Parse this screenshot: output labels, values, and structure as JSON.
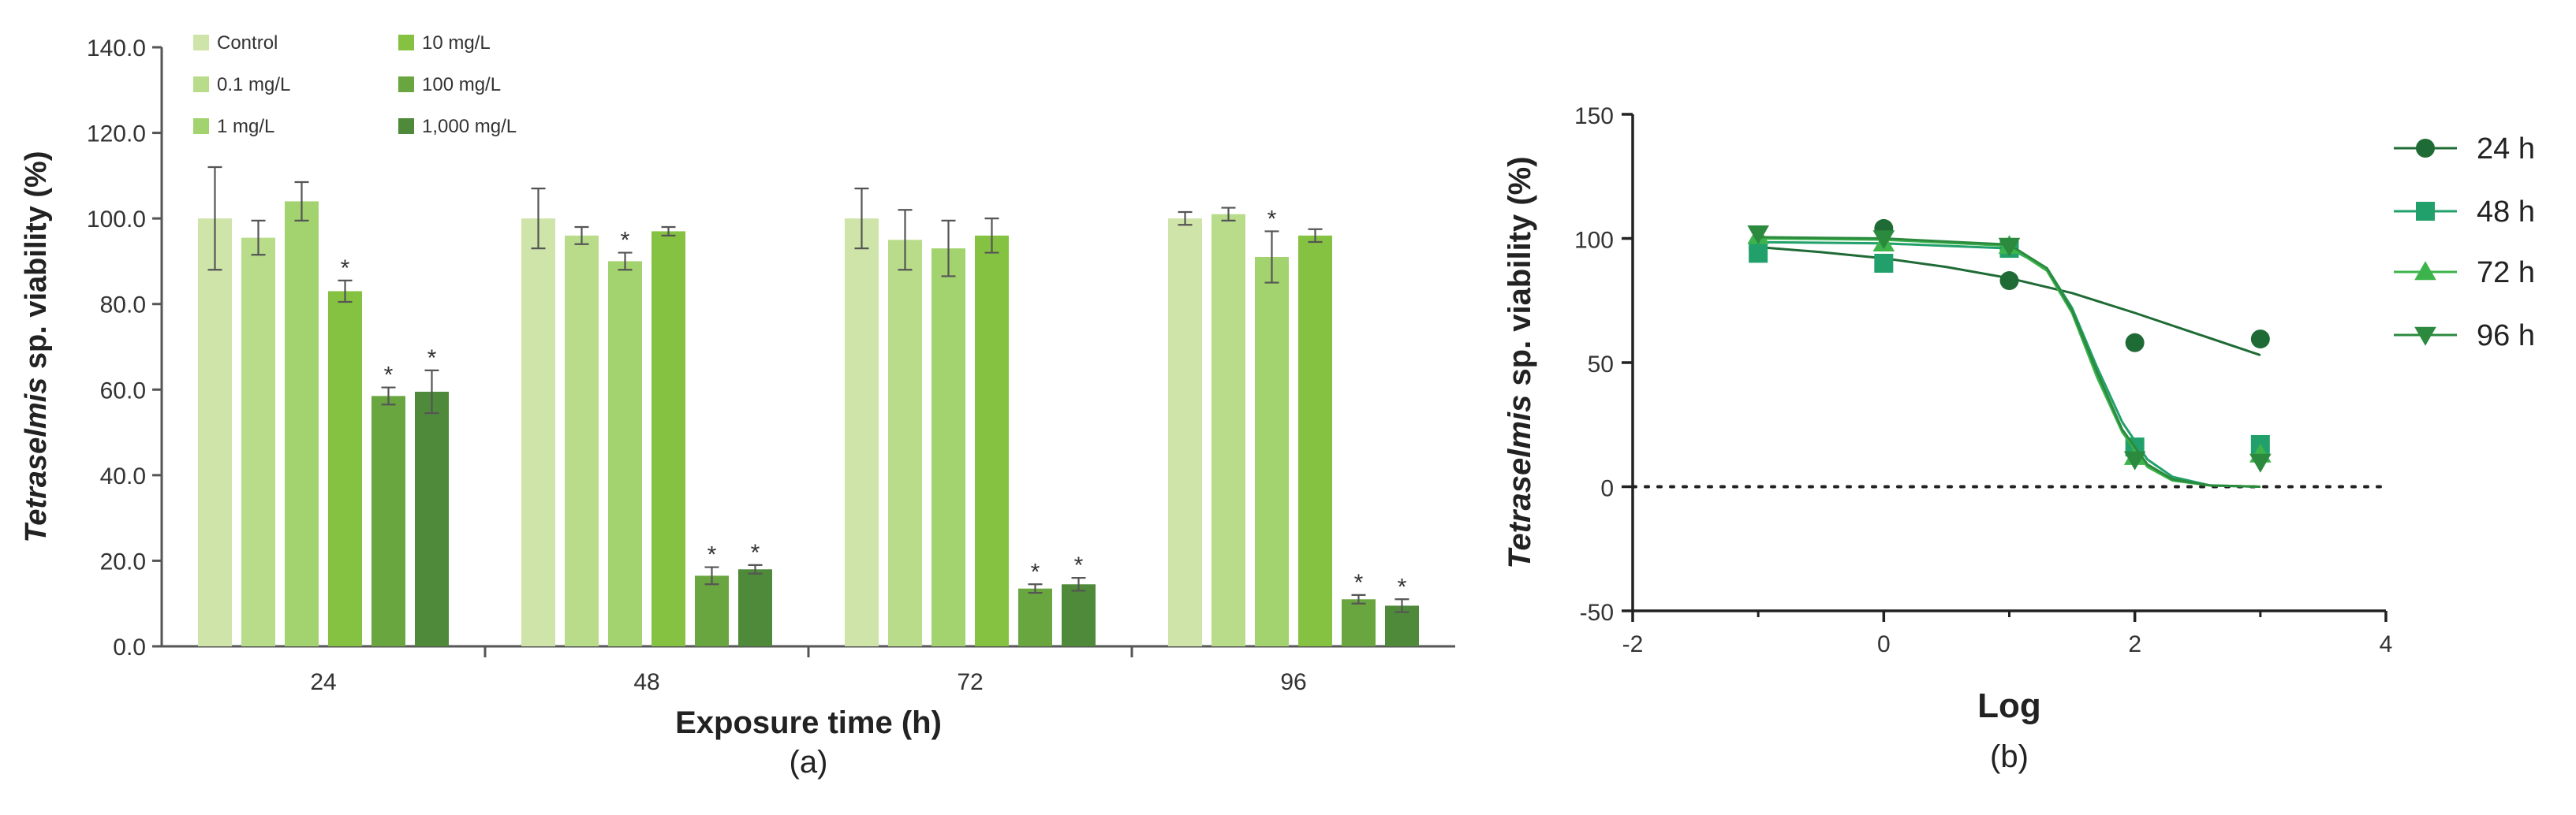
{
  "chart_data": [
    {
      "panel": "(a)",
      "type": "bar",
      "categories": [
        "24",
        "48",
        "72",
        "96"
      ],
      "xlabel": "Exposure time (h)",
      "ylabel_italic": "Tetraselmis",
      "ylabel_rest": " sp. viability (%)",
      "ylim": [
        0,
        140
      ],
      "yticks": [
        "0.0",
        "20.0",
        "40.0",
        "60.0",
        "80.0",
        "100.0",
        "120.0",
        "140.0"
      ],
      "legend_position": "top-left",
      "star_marker": "*",
      "series": [
        {
          "name": "Control",
          "color": "#cfe4a9",
          "values": [
            100,
            100,
            100,
            100
          ],
          "errors": [
            12,
            7,
            7,
            1.5
          ],
          "significant": [
            false,
            false,
            false,
            false
          ]
        },
        {
          "name": "0.1 mg/L",
          "color": "#b8dc8a",
          "values": [
            95.5,
            96,
            95,
            101
          ],
          "errors": [
            4,
            2,
            7,
            1.5
          ],
          "significant": [
            false,
            false,
            false,
            false
          ]
        },
        {
          "name": "1 mg/L",
          "color": "#a2d36e",
          "values": [
            104,
            90,
            93,
            91
          ],
          "errors": [
            4.5,
            2,
            6.5,
            6
          ],
          "significant": [
            false,
            true,
            false,
            true
          ]
        },
        {
          "name": "10 mg/L",
          "color": "#86c241",
          "values": [
            83,
            97,
            96,
            96
          ],
          "errors": [
            2.5,
            1,
            4,
            1.5
          ],
          "significant": [
            true,
            false,
            false,
            false
          ]
        },
        {
          "name": "100 mg/L",
          "color": "#6aa640",
          "values": [
            58.5,
            16.5,
            13.5,
            11
          ],
          "errors": [
            2,
            2,
            1,
            1
          ],
          "significant": [
            true,
            true,
            true,
            true
          ]
        },
        {
          "name": "1,000 mg/L",
          "color": "#4f8a3a",
          "values": [
            59.5,
            18,
            14.5,
            9.5
          ],
          "errors": [
            5,
            1,
            1.5,
            1.5
          ],
          "significant": [
            true,
            true,
            true,
            true
          ]
        }
      ]
    },
    {
      "panel": "(b)",
      "type": "scatter",
      "xlabel": "Log",
      "ylabel_italic": "Tetraselmis",
      "ylabel_rest": " sp. viability (%)",
      "xlim": [
        -2,
        4
      ],
      "ylim": [
        -50,
        150
      ],
      "xticks": [
        "-2",
        "0",
        "2",
        "4"
      ],
      "yticks": [
        "-50",
        "0",
        "50",
        "100",
        "150"
      ],
      "reference_line": {
        "y": 0,
        "style": "dotted"
      },
      "legend_position": "right",
      "series": [
        {
          "name": "24 h",
          "marker": "circle",
          "color": "#1f6b36",
          "x": [
            -1,
            0,
            1,
            2,
            3
          ],
          "y": [
            96,
            104,
            83,
            58,
            59.5
          ],
          "fit": [
            [
              -1,
              96.5
            ],
            [
              -0.5,
              94.5
            ],
            [
              0,
              92
            ],
            [
              0.5,
              88.5
            ],
            [
              1,
              84
            ],
            [
              1.5,
              78
            ],
            [
              2,
              70
            ],
            [
              2.5,
              61.5
            ],
            [
              3,
              53
            ]
          ]
        },
        {
          "name": "48 h",
          "marker": "square",
          "color": "#22a06b",
          "x": [
            -1,
            0,
            1,
            2,
            3
          ],
          "y": [
            94,
            90,
            96,
            16,
            17
          ],
          "fit": [
            [
              -1,
              98.5
            ],
            [
              0,
              98
            ],
            [
              1,
              96
            ],
            [
              1.3,
              88
            ],
            [
              1.5,
              72
            ],
            [
              1.7,
              48
            ],
            [
              1.9,
              26
            ],
            [
              2.1,
              11
            ],
            [
              2.3,
              4
            ],
            [
              2.6,
              0.5
            ],
            [
              3,
              0
            ]
          ]
        },
        {
          "name": "72 h",
          "marker": "triangle-up",
          "color": "#3cb44b",
          "x": [
            -1,
            0,
            1,
            2,
            3
          ],
          "y": [
            101,
            98,
            97,
            12,
            13
          ],
          "fit": [
            [
              -1,
              100
            ],
            [
              0,
              99.5
            ],
            [
              1,
              97
            ],
            [
              1.3,
              87
            ],
            [
              1.5,
              70
            ],
            [
              1.7,
              44
            ],
            [
              1.9,
              22
            ],
            [
              2.1,
              8
            ],
            [
              2.3,
              2.5
            ],
            [
              2.6,
              0.5
            ],
            [
              3,
              0
            ]
          ]
        },
        {
          "name": "96 h",
          "marker": "triangle-down",
          "color": "#2b8a3e",
          "x": [
            -1,
            0,
            1,
            2,
            3
          ],
          "y": [
            102,
            100,
            97,
            11,
            10
          ],
          "fit": [
            [
              -1,
              100.5
            ],
            [
              0,
              100
            ],
            [
              1,
              97.5
            ],
            [
              1.3,
              88
            ],
            [
              1.5,
              71
            ],
            [
              1.7,
              46
            ],
            [
              1.9,
              23
            ],
            [
              2.1,
              9
            ],
            [
              2.3,
              3
            ],
            [
              2.6,
              0.5
            ],
            [
              3,
              0
            ]
          ]
        }
      ]
    }
  ]
}
